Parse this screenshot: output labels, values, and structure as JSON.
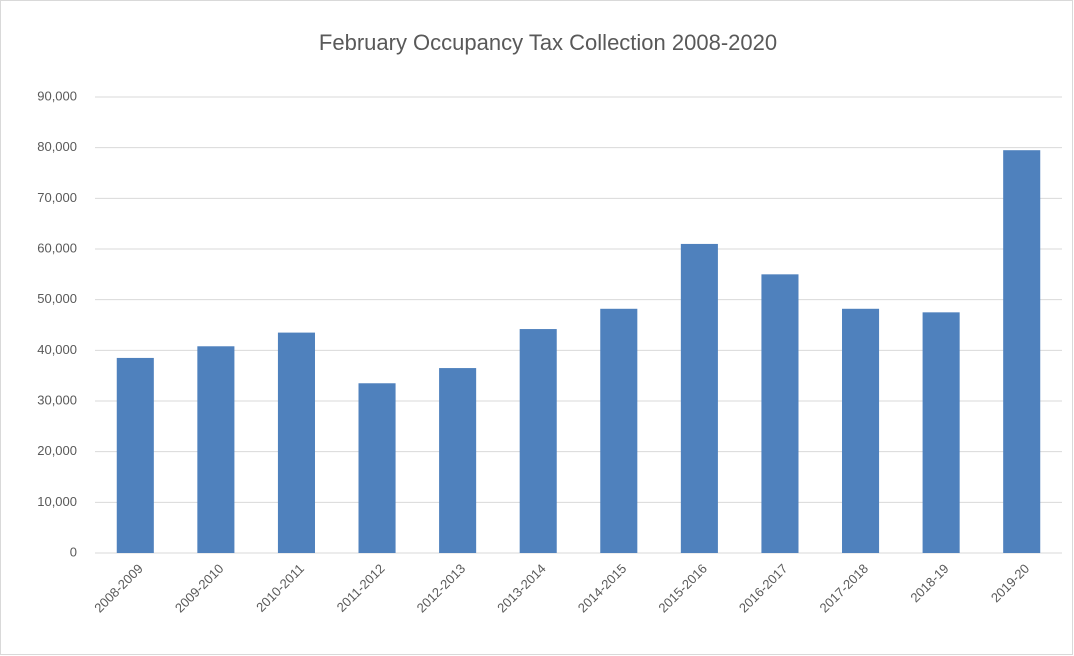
{
  "chart_data": {
    "type": "bar",
    "title": "February Occupancy Tax Collection 2008-2020",
    "categories": [
      "2008-2009",
      "2009-2010",
      "2010-2011",
      "2011-2012",
      "2012-2013",
      "2013-2014",
      "2014-2015",
      "2015-2016",
      "2016-2017",
      "2017-2018",
      "2018-19",
      "2019-20"
    ],
    "values": [
      38500,
      40800,
      43500,
      33500,
      36500,
      44200,
      48200,
      61000,
      55000,
      48200,
      47500,
      79500
    ],
    "color": "#4f81bd",
    "ylim": [
      0,
      90000
    ],
    "yticks": [
      0,
      {
        "value": 10000,
        "label": "10,000"
      },
      {
        "value": 20000,
        "label": "20,000"
      },
      {
        "value": 30000,
        "label": "30,000"
      },
      {
        "value": 40000,
        "label": "40,000"
      },
      {
        "value": 50000,
        "label": "50,000"
      },
      {
        "value": 60000,
        "label": "60,000"
      },
      {
        "value": 70000,
        "label": "70,000"
      },
      {
        "value": 80000,
        "label": "80,000"
      },
      {
        "value": 90000,
        "label": "90,000"
      }
    ],
    "grid": true
  }
}
